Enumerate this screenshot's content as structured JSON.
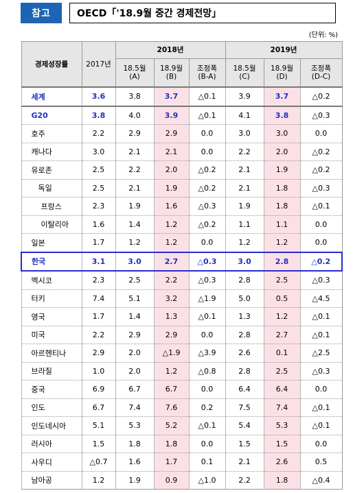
{
  "header": {
    "badge": "참고",
    "title": "OECD「'18.9월 중간 경제전망」",
    "unit": "(단위: %)"
  },
  "table": {
    "corner": "경제성장률",
    "col_2017": "2017년",
    "year_2018": "2018년",
    "year_2019": "2019년",
    "sub": {
      "a": "18.5월 (A)",
      "b": "18.9월 (B)",
      "ba": "조정폭 (B-A)",
      "c": "18.5월 (C)",
      "d": "18.9월 (D)",
      "dc": "조정폭 (D-C)"
    },
    "rows": [
      {
        "name": "세계",
        "v2017": "3.6",
        "a": "3.8",
        "b": "3.7",
        "ba": "△0.1",
        "c": "3.9",
        "d": "3.7",
        "dc": "△0.2"
      },
      {
        "name": "G20",
        "v2017": "3.8",
        "a": "4.0",
        "b": "3.9",
        "ba": "△0.1",
        "c": "4.1",
        "d": "3.8",
        "dc": "△0.3"
      },
      {
        "name": "호주",
        "v2017": "2.2",
        "a": "2.9",
        "b": "2.9",
        "ba": "0.0",
        "c": "3.0",
        "d": "3.0",
        "dc": "0.0"
      },
      {
        "name": "캐나다",
        "v2017": "3.0",
        "a": "2.1",
        "b": "2.1",
        "ba": "0.0",
        "c": "2.2",
        "d": "2.0",
        "dc": "△0.2"
      },
      {
        "name": "유로존",
        "v2017": "2.5",
        "a": "2.2",
        "b": "2.0",
        "ba": "△0.2",
        "c": "2.1",
        "d": "1.9",
        "dc": "△0.2"
      },
      {
        "name": "독일",
        "v2017": "2.5",
        "a": "2.1",
        "b": "1.9",
        "ba": "△0.2",
        "c": "2.1",
        "d": "1.8",
        "dc": "△0.3"
      },
      {
        "name": "프랑스",
        "v2017": "2.3",
        "a": "1.9",
        "b": "1.6",
        "ba": "△0.3",
        "c": "1.9",
        "d": "1.8",
        "dc": "△0.1"
      },
      {
        "name": "이탈리아",
        "v2017": "1.6",
        "a": "1.4",
        "b": "1.2",
        "ba": "△0.2",
        "c": "1.1",
        "d": "1.1",
        "dc": "0.0"
      },
      {
        "name": "일본",
        "v2017": "1.7",
        "a": "1.2",
        "b": "1.2",
        "ba": "0.0",
        "c": "1.2",
        "d": "1.2",
        "dc": "0.0"
      },
      {
        "name": "한국",
        "v2017": "3.1",
        "a": "3.0",
        "b": "2.7",
        "ba": "△0.3",
        "c": "3.0",
        "d": "2.8",
        "dc": "△0.2"
      },
      {
        "name": "멕시코",
        "v2017": "2.3",
        "a": "2.5",
        "b": "2.2",
        "ba": "△0.3",
        "c": "2.8",
        "d": "2.5",
        "dc": "△0.3"
      },
      {
        "name": "터키",
        "v2017": "7.4",
        "a": "5.1",
        "b": "3.2",
        "ba": "△1.9",
        "c": "5.0",
        "d": "0.5",
        "dc": "△4.5"
      },
      {
        "name": "영국",
        "v2017": "1.7",
        "a": "1.4",
        "b": "1.3",
        "ba": "△0.1",
        "c": "1.3",
        "d": "1.2",
        "dc": "△0.1"
      },
      {
        "name": "미국",
        "v2017": "2.2",
        "a": "2.9",
        "b": "2.9",
        "ba": "0.0",
        "c": "2.8",
        "d": "2.7",
        "dc": "△0.1"
      },
      {
        "name": "아르헨티나",
        "v2017": "2.9",
        "a": "2.0",
        "b": "△1.9",
        "ba": "△3.9",
        "c": "2.6",
        "d": "0.1",
        "dc": "△2.5"
      },
      {
        "name": "브라질",
        "v2017": "1.0",
        "a": "2.0",
        "b": "1.2",
        "ba": "△0.8",
        "c": "2.8",
        "d": "2.5",
        "dc": "△0.3"
      },
      {
        "name": "중국",
        "v2017": "6.9",
        "a": "6.7",
        "b": "6.7",
        "ba": "0.0",
        "c": "6.4",
        "d": "6.4",
        "dc": "0.0"
      },
      {
        "name": "인도",
        "v2017": "6.7",
        "a": "7.4",
        "b": "7.6",
        "ba": "0.2",
        "c": "7.5",
        "d": "7.4",
        "dc": "△0.1"
      },
      {
        "name": "인도네시아",
        "v2017": "5.1",
        "a": "5.3",
        "b": "5.2",
        "ba": "△0.1",
        "c": "5.4",
        "d": "5.3",
        "dc": "△0.1"
      },
      {
        "name": "러시아",
        "v2017": "1.5",
        "a": "1.8",
        "b": "1.8",
        "ba": "0.0",
        "c": "1.5",
        "d": "1.5",
        "dc": "0.0"
      },
      {
        "name": "사우디",
        "v2017": "△0.7",
        "a": "1.6",
        "b": "1.7",
        "ba": "0.1",
        "c": "2.1",
        "d": "2.6",
        "dc": "0.5"
      },
      {
        "name": "남아공",
        "v2017": "1.2",
        "a": "1.9",
        "b": "0.9",
        "ba": "△1.0",
        "c": "2.2",
        "d": "1.8",
        "dc": "△0.4"
      }
    ]
  }
}
